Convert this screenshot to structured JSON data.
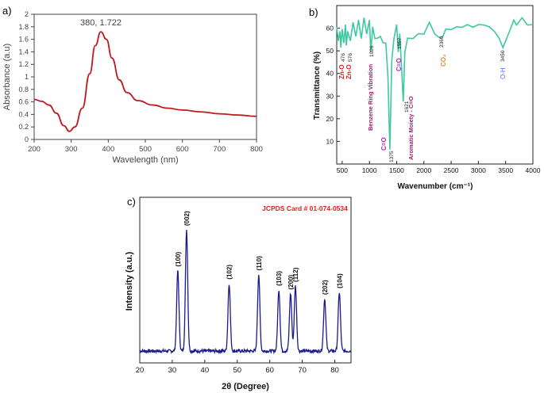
{
  "chart_data": [
    {
      "panel_label": "a)",
      "type": "line",
      "xlabel": "Wavelength (nm)",
      "ylabel": "Absorbance (a.u)",
      "xlim": [
        200,
        800
      ],
      "ylim": [
        0,
        2
      ],
      "x_ticks": [
        "200",
        "300",
        "400",
        "500",
        "600",
        "700",
        "800"
      ],
      "y_ticks": [
        "0",
        "0.2",
        "0.4",
        "0.6",
        "0.8",
        "1",
        "1.2",
        "1.4",
        "1.6",
        "1.8",
        "2"
      ],
      "annotation": "380, 1.722",
      "line_color": "#c0181c",
      "series": [
        {
          "x": [
            200,
            220,
            240,
            260,
            280,
            295,
            310,
            330,
            350,
            365,
            380,
            395,
            410,
            430,
            450,
            480,
            520,
            560,
            600,
            650,
            700,
            750,
            800
          ],
          "values": [
            0.64,
            0.61,
            0.55,
            0.42,
            0.22,
            0.13,
            0.2,
            0.5,
            1.05,
            1.5,
            1.72,
            1.6,
            1.3,
            0.95,
            0.75,
            0.62,
            0.55,
            0.5,
            0.47,
            0.44,
            0.41,
            0.39,
            0.37
          ]
        }
      ]
    },
    {
      "panel_label": "b)",
      "type": "line",
      "xlabel": "Wavenumber (cm⁻¹)",
      "ylabel": "Transmittance (%)",
      "xlim": [
        400,
        4000
      ],
      "ylim": [
        0,
        70
      ],
      "x_ticks": [
        "500",
        "1000",
        "1500",
        "2000",
        "2500",
        "3000",
        "3500",
        "4000"
      ],
      "y_ticks": [
        "10",
        "20",
        "30",
        "40",
        "50",
        "60"
      ],
      "line_color": "#3cc9a0",
      "series": [
        {
          "x": [
            400,
            430,
            460,
            476,
            500,
            530,
            560,
            576,
            600,
            650,
            700,
            750,
            800,
            850,
            900,
            950,
            1000,
            1026,
            1060,
            1100,
            1150,
            1200,
            1250,
            1300,
            1340,
            1375,
            1410,
            1450,
            1500,
            1530,
            1557,
            1590,
            1621,
            1650,
            1700,
            1800,
            1900,
            2000,
            2100,
            2200,
            2300,
            2350,
            2400,
            2500,
            2600,
            2700,
            2800,
            2900,
            3000,
            3100,
            3200,
            3300,
            3380,
            3450,
            3520,
            3600,
            3650,
            3700,
            3800,
            3900,
            4000
          ],
          "values": [
            60,
            55,
            58,
            52,
            59,
            54,
            61,
            53,
            58,
            55,
            62,
            57,
            63,
            56,
            64,
            58,
            63,
            50,
            60,
            56,
            55,
            57,
            53,
            54,
            38,
            7,
            45,
            56,
            61,
            50,
            57,
            43,
            27,
            50,
            55,
            56,
            57,
            58,
            62,
            58,
            55,
            57,
            59,
            60,
            60,
            61,
            61,
            61,
            61,
            62,
            60,
            59,
            55,
            52,
            55,
            61,
            63,
            62,
            64,
            62,
            61
          ]
        }
      ],
      "peak_labels": [
        "476",
        "576",
        "1026",
        "1375",
        "1557",
        "1621",
        "2360",
        "3450"
      ],
      "annotations": [
        {
          "text": "Zn-O",
          "color": "#d42020"
        },
        {
          "text": "Zn-O",
          "color": "#d42020"
        },
        {
          "text": "Benzene Ring Vibration",
          "color": "#a0206e"
        },
        {
          "text": "C=O",
          "color": "#b020c0"
        },
        {
          "text": "C=O",
          "color": "#b020c0"
        },
        {
          "text": "Aromatic Moiety - C=O",
          "color": "#a0206e"
        },
        {
          "text": "CO₂",
          "color": "#e08a20"
        },
        {
          "text": "O-H",
          "color": "#4a6cf0"
        }
      ]
    },
    {
      "panel_label": "c)",
      "type": "line",
      "xlabel": "2θ (Degree)",
      "ylabel": "Intensity (a.u.)",
      "xlim": [
        20,
        85
      ],
      "x_ticks": [
        "20",
        "30",
        "40",
        "50",
        "60",
        "70",
        "80"
      ],
      "title": "JCPDS Card # 01-074-0534",
      "title_color": "#e02020",
      "line_color": "#1a1a8c",
      "baseline": 0.05,
      "peaks": [
        {
          "hkl": "(100)",
          "two_theta": 31.7,
          "intensity": 0.68
        },
        {
          "hkl": "(002)",
          "two_theta": 34.4,
          "intensity": 1.0
        },
        {
          "hkl": "(102)",
          "two_theta": 47.5,
          "intensity": 0.58
        },
        {
          "hkl": "(110)",
          "two_theta": 56.6,
          "intensity": 0.65
        },
        {
          "hkl": "(103)",
          "two_theta": 62.8,
          "intensity": 0.53
        },
        {
          "hkl": "(200)",
          "two_theta": 66.4,
          "intensity": 0.5
        },
        {
          "hkl": "(112)",
          "two_theta": 67.9,
          "intensity": 0.56
        },
        {
          "hkl": "(202)",
          "two_theta": 76.9,
          "intensity": 0.46
        },
        {
          "hkl": "(104)",
          "two_theta": 81.4,
          "intensity": 0.51
        }
      ]
    }
  ]
}
